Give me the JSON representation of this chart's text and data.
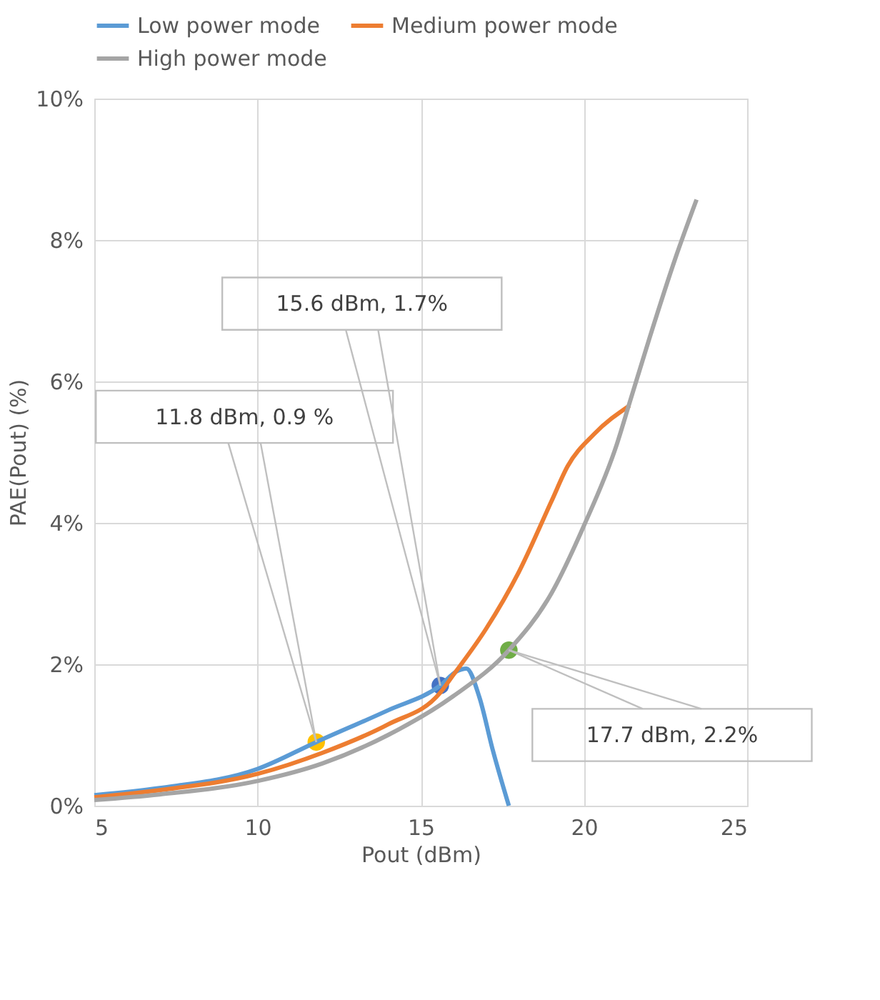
{
  "chart_data": {
    "type": "line",
    "xlabel": "Pout (dBm)",
    "ylabel": "PAE(Pout) (%)",
    "xlim": [
      5,
      25
    ],
    "xticks": [
      5,
      10,
      15,
      20,
      25
    ],
    "ylim": [
      0,
      10
    ],
    "yticks": [
      {
        "value": 0,
        "label": "0%"
      },
      {
        "value": 2,
        "label": "2%"
      },
      {
        "value": 4,
        "label": "4%"
      },
      {
        "value": 6,
        "label": "6%"
      },
      {
        "value": 8,
        "label": "8%"
      },
      {
        "value": 10,
        "label": "10%"
      }
    ],
    "grid": true,
    "legend": "top left",
    "line_style": "solid",
    "series": [
      {
        "name": "Low power mode",
        "color": "#5b9bd5",
        "x": [
          5,
          7,
          10,
          11.8,
          14,
          15.6,
          16.1,
          16.4,
          16.8,
          17.2,
          17.7
        ],
        "values": [
          0.15,
          0.25,
          0.52,
          0.9,
          1.35,
          1.7,
          1.9,
          1.94,
          1.53,
          0.8,
          0
        ]
      },
      {
        "name": "Medium power mode",
        "color": "#ed7d31",
        "x": [
          5,
          7,
          10,
          12,
          14,
          15.6,
          16,
          17,
          18,
          19,
          19.5,
          20.3,
          21.4
        ],
        "values": [
          0.12,
          0.22,
          0.45,
          0.75,
          1.15,
          1.6,
          1.85,
          2.5,
          3.3,
          4.3,
          4.8,
          5.25,
          5.66
        ]
      },
      {
        "name": "High power mode",
        "color": "#a5a5a5",
        "x": [
          5,
          7,
          10,
          12,
          14,
          16,
          17.7,
          19,
          20,
          21,
          21.4,
          22,
          22.8,
          23.45
        ],
        "values": [
          0.08,
          0.16,
          0.35,
          0.6,
          1.0,
          1.55,
          2.2,
          3.0,
          3.96,
          5.1,
          5.7,
          6.6,
          7.74,
          8.57
        ]
      },
      {
        "type": "scatter",
        "marker": "circle",
        "x": [
          11.8,
          15.6,
          17.7
        ],
        "values": [
          0.9,
          1.7,
          2.2
        ],
        "colors": [
          "#ffc000",
          "#4472c4",
          "#70ad47"
        ]
      }
    ],
    "annotations": [
      {
        "text": "11.8 dBm, 0.9 %",
        "x": 11.8,
        "y": 0.9
      },
      {
        "text": "15.6 dBm, 1.7%",
        "x": 15.6,
        "y": 1.7
      },
      {
        "text": "17.7 dBm, 2.2%",
        "x": 17.7,
        "y": 2.2
      }
    ]
  }
}
